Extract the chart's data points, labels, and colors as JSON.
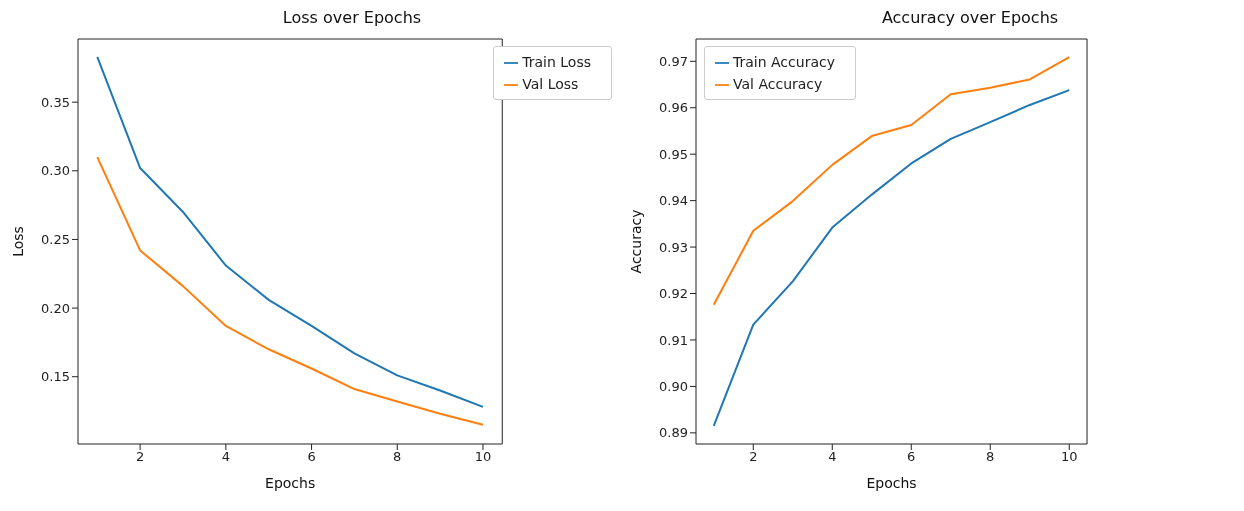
{
  "chart_data": [
    {
      "type": "line",
      "title": "Loss over Epochs",
      "xlabel": "Epochs",
      "ylabel": "Loss",
      "x": [
        1,
        2,
        3,
        4,
        5,
        6,
        7,
        8,
        9,
        10
      ],
      "xlim": [
        0.55,
        10.45
      ],
      "xticks": [
        2,
        4,
        6,
        8,
        10
      ],
      "ylim": [
        0.101,
        0.396
      ],
      "yticks": [
        0.15,
        {
          "value": 0.2,
          "label": "0.20"
        },
        0.25,
        {
          "value": 0.3,
          "label": "0.30"
        },
        0.35
      ],
      "grid": false,
      "legend": "top right",
      "marker": "none",
      "line_style": "solid",
      "series": [
        {
          "name": "Train Loss",
          "color": "#1f77b4",
          "values": [
            0.383,
            0.302,
            0.27,
            0.231,
            0.206,
            0.187,
            0.167,
            0.151,
            0.14,
            0.128
          ]
        },
        {
          "name": "Val Loss",
          "color": "#ff7f0e",
          "values": [
            0.31,
            0.242,
            0.216,
            0.187,
            0.17,
            0.156,
            0.141,
            0.132,
            0.123,
            0.115
          ]
        }
      ]
    },
    {
      "type": "line",
      "title": "Accuracy over Epochs",
      "xlabel": "Epochs",
      "ylabel": "Accuracy",
      "x": [
        1,
        2,
        3,
        4,
        5,
        6,
        7,
        8,
        9,
        10
      ],
      "xlim": [
        0.55,
        10.45
      ],
      "xticks": [
        2,
        4,
        6,
        8,
        10
      ],
      "ylim": [
        0.8876,
        0.9748
      ],
      "yticks": [
        0.89,
        {
          "value": 0.9,
          "label": "0.90"
        },
        0.91,
        0.92,
        0.93,
        0.94,
        0.95,
        0.96,
        0.97
      ],
      "grid": false,
      "legend": "top left",
      "marker": "none",
      "line_style": "solid",
      "series": [
        {
          "name": "Train Accuracy",
          "color": "#1f77b4",
          "values": [
            0.8915,
            0.9133,
            0.9226,
            0.9342,
            0.9413,
            0.948,
            0.9533,
            0.9569,
            0.9606,
            0.9638
          ]
        },
        {
          "name": "Val Accuracy",
          "color": "#ff7f0e",
          "values": [
            0.9176,
            0.9335,
            0.9399,
            0.9477,
            0.9539,
            0.9563,
            0.9629,
            0.9643,
            0.9661,
            0.9709
          ]
        }
      ]
    }
  ]
}
